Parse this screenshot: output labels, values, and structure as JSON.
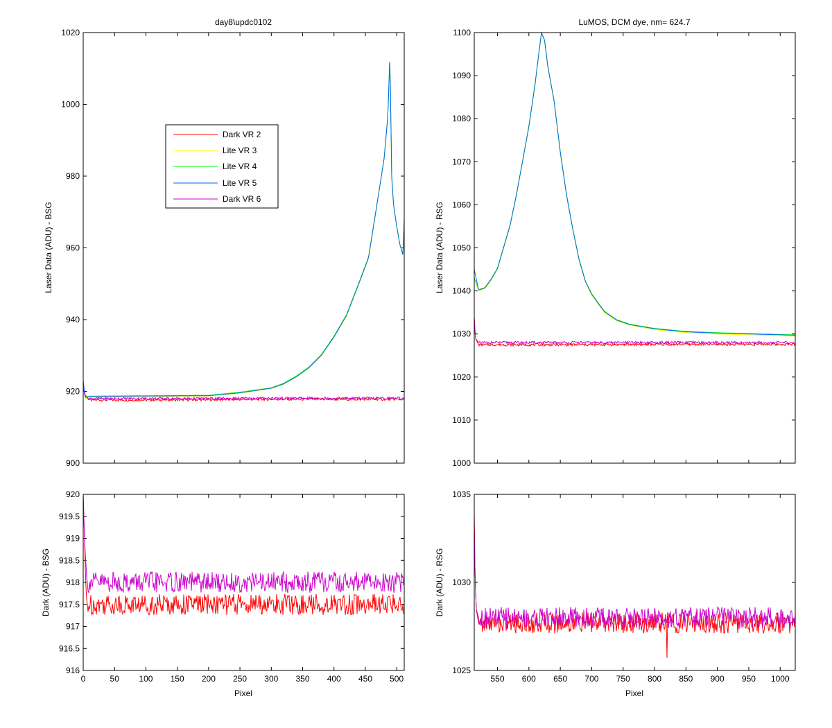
{
  "chart_data": [
    {
      "type": "line",
      "title": "day8\\updc0102",
      "xlabel": "",
      "ylabel": "Laser Data (ADU) - BSG",
      "xlim": [
        0,
        512
      ],
      "ylim": [
        900,
        1020
      ],
      "xticks": [
        0,
        50,
        100,
        150,
        200,
        250,
        300,
        350,
        400,
        450,
        500
      ],
      "yticks": [
        900,
        920,
        940,
        960,
        980,
        1000,
        1020
      ],
      "show_xtick_labels": false,
      "legend": {
        "position": "upper-center",
        "entries": [
          "Dark VR 2",
          "Lite VR 3",
          "Lite VR 4",
          "Lite VR 5",
          "Dark VR 6"
        ]
      },
      "series": [
        {
          "name": "Dark VR 2",
          "color": "#ff0000",
          "x": [
            0,
            3,
            10,
            100,
            200,
            300,
            400,
            450,
            500,
            512
          ],
          "values": [
            922,
            919,
            917.6,
            917.6,
            917.7,
            917.8,
            917.8,
            917.8,
            917.8,
            917.8
          ]
        },
        {
          "name": "Lite VR 3",
          "color": "#ffff00",
          "x": [
            0,
            3,
            10,
            100,
            200,
            250,
            300,
            320,
            340,
            360,
            380,
            400,
            420,
            440,
            455,
            465,
            472,
            480,
            486,
            489,
            490,
            492,
            495,
            500,
            505,
            510,
            512
          ],
          "values": [
            922,
            918,
            918.3,
            918.5,
            918.7,
            919.5,
            920.8,
            922,
            924,
            926.5,
            930,
            935,
            941,
            950,
            957,
            968,
            976,
            985,
            997,
            1013,
            1005,
            980,
            972,
            966,
            961,
            958,
            968
          ]
        },
        {
          "name": "Lite VR 4",
          "color": "#00ff00",
          "x": [
            0,
            3,
            10,
            100,
            200,
            250,
            300,
            320,
            340,
            360,
            380,
            400,
            420,
            440,
            455,
            465,
            472,
            480,
            486,
            489,
            490,
            492,
            495,
            500,
            505,
            510,
            512
          ],
          "values": [
            922,
            918.5,
            918.7,
            918.8,
            918.9,
            919.8,
            921,
            922.3,
            924.3,
            926.8,
            930.3,
            935.4,
            941.4,
            950.4,
            957.4,
            968.4,
            976,
            985,
            997,
            1013,
            1005,
            980,
            972,
            966,
            961,
            958,
            968
          ]
        },
        {
          "name": "Lite VR 5",
          "color": "#0066ff",
          "x": [
            0,
            3,
            10,
            100,
            200,
            250,
            300,
            320,
            340,
            360,
            380,
            400,
            420,
            440,
            455,
            465,
            472,
            480,
            486,
            489,
            490,
            492,
            495,
            500,
            505,
            510,
            512
          ],
          "values": [
            923,
            918.3,
            918.6,
            918.7,
            918.8,
            919.6,
            920.9,
            922.1,
            924.1,
            926.6,
            930.1,
            935.2,
            941.2,
            950.2,
            957.2,
            968.2,
            976,
            985,
            997,
            1013,
            1005,
            980,
            972,
            966,
            961,
            958,
            968
          ]
        },
        {
          "name": "Dark VR 6",
          "color": "#cc00cc",
          "x": [
            0,
            3,
            10,
            100,
            200,
            300,
            400,
            450,
            500,
            512
          ],
          "values": [
            921,
            918.5,
            918,
            918,
            918,
            918.1,
            918.1,
            918.1,
            918.1,
            918
          ]
        }
      ]
    },
    {
      "type": "line",
      "title": "LuMOS, DCM dye, nm= 624.7",
      "xlabel": "",
      "ylabel": "Laser Data (ADU) - RSG",
      "xlim": [
        513,
        1024
      ],
      "ylim": [
        1000,
        1100
      ],
      "xticks": [
        550,
        600,
        650,
        700,
        750,
        800,
        850,
        900,
        950,
        1000
      ],
      "yticks": [
        1000,
        1010,
        1020,
        1030,
        1040,
        1050,
        1060,
        1070,
        1080,
        1090,
        1100
      ],
      "show_xtick_labels": false,
      "series": [
        {
          "name": "Dark VR 2",
          "color": "#ff0000",
          "x": [
            513,
            515,
            520,
            600,
            700,
            800,
            900,
            1000,
            1024
          ],
          "values": [
            1034,
            1029,
            1027.5,
            1027.5,
            1027.5,
            1027.6,
            1027.6,
            1027.6,
            1027.6
          ]
        },
        {
          "name": "Lite VR 3",
          "color": "#ffff00",
          "x": [
            513,
            520,
            530,
            540,
            550,
            560,
            570,
            580,
            590,
            600,
            610,
            615,
            620,
            625,
            630,
            640,
            650,
            660,
            670,
            680,
            690,
            700,
            720,
            740,
            760,
            780,
            800,
            850,
            900,
            950,
            1000,
            1024
          ],
          "values": [
            1043,
            1040,
            1040.5,
            1042.5,
            1045,
            1050,
            1055,
            1062,
            1070,
            1078,
            1088,
            1094,
            1100,
            1098,
            1092,
            1084,
            1072,
            1062,
            1054,
            1047,
            1042,
            1039,
            1035,
            1033,
            1032,
            1031.5,
            1031,
            1030.3,
            1030,
            1029.8,
            1029.6,
            1029.5
          ]
        },
        {
          "name": "Lite VR 4",
          "color": "#00ff00",
          "x": [
            513,
            520,
            530,
            540,
            550,
            560,
            570,
            580,
            590,
            600,
            610,
            615,
            620,
            625,
            630,
            640,
            650,
            660,
            670,
            680,
            690,
            700,
            720,
            740,
            760,
            780,
            800,
            850,
            900,
            950,
            1000,
            1024
          ],
          "values": [
            1043,
            1040.3,
            1040.8,
            1042.8,
            1045.3,
            1050.3,
            1055.3,
            1062.3,
            1070.3,
            1078.3,
            1088.3,
            1094.3,
            1100,
            1098.3,
            1092.3,
            1084.3,
            1072.3,
            1062.3,
            1054.3,
            1047.3,
            1042.3,
            1039.3,
            1035.3,
            1033.3,
            1032.3,
            1031.8,
            1031.3,
            1030.6,
            1030.3,
            1030.1,
            1029.9,
            1029.8
          ]
        },
        {
          "name": "Lite VR 5",
          "color": "#0066ff",
          "x": [
            513,
            520,
            530,
            540,
            550,
            560,
            570,
            580,
            590,
            600,
            610,
            615,
            620,
            625,
            630,
            640,
            650,
            660,
            670,
            680,
            690,
            700,
            720,
            740,
            760,
            780,
            800,
            850,
            900,
            950,
            1000,
            1024
          ],
          "values": [
            1045,
            1040.2,
            1040.7,
            1042.7,
            1045.2,
            1050.2,
            1055.2,
            1062.2,
            1070.2,
            1078.2,
            1088.2,
            1094.2,
            1100,
            1098.2,
            1092.2,
            1084.2,
            1072.2,
            1062.2,
            1054.2,
            1047.2,
            1042.2,
            1039.2,
            1035.2,
            1033.2,
            1032.2,
            1031.7,
            1031.2,
            1030.5,
            1030.2,
            1030,
            1029.8,
            1029.7
          ]
        },
        {
          "name": "Dark VR 6",
          "color": "#cc00cc",
          "x": [
            513,
            515,
            520,
            600,
            700,
            800,
            900,
            1000,
            1024
          ],
          "values": [
            1033,
            1029,
            1028,
            1028,
            1028,
            1028,
            1028,
            1028,
            1028
          ]
        }
      ]
    },
    {
      "type": "line",
      "title": "",
      "xlabel": "Pixel",
      "ylabel": "Dark (ADU) - BSG",
      "xlim": [
        0,
        512
      ],
      "ylim": [
        916,
        920
      ],
      "xticks": [
        0,
        50,
        100,
        150,
        200,
        250,
        300,
        350,
        400,
        450,
        500
      ],
      "yticks": [
        916,
        916.5,
        917,
        917.5,
        918,
        918.5,
        919,
        919.5,
        920
      ],
      "show_xtick_labels": true,
      "series": [
        {
          "name": "Dark VR 2",
          "color": "#ff0000",
          "x": [
            0,
            2,
            4,
            6,
            512
          ],
          "values": [
            920,
            919,
            918,
            917.5,
            917.5
          ]
        },
        {
          "name": "Dark VR 6",
          "color": "#cc00cc",
          "x": [
            0,
            2,
            4,
            6,
            512
          ],
          "values": [
            920,
            919,
            918.5,
            918,
            918
          ]
        }
      ]
    },
    {
      "type": "line",
      "title": "",
      "xlabel": "Pixel",
      "ylabel": "Dark (ADU) - RSG",
      "xlim": [
        513,
        1024
      ],
      "ylim": [
        1025,
        1035
      ],
      "xticks": [
        550,
        600,
        650,
        700,
        750,
        800,
        850,
        900,
        950,
        1000
      ],
      "yticks": [
        1025,
        1030,
        1035
      ],
      "show_xtick_labels": true,
      "series": [
        {
          "name": "Dark VR 2",
          "color": "#ff0000",
          "x": [
            513,
            514,
            516,
            520,
            819,
            820,
            821,
            1024
          ],
          "values": [
            1034,
            1031,
            1028.5,
            1027.7,
            1027.7,
            1026,
            1027.7,
            1027.7
          ]
        },
        {
          "name": "Dark VR 6",
          "color": "#cc00cc",
          "x": [
            513,
            514,
            516,
            520,
            1024
          ],
          "values": [
            1033,
            1031,
            1028.5,
            1028,
            1028
          ]
        }
      ]
    }
  ]
}
